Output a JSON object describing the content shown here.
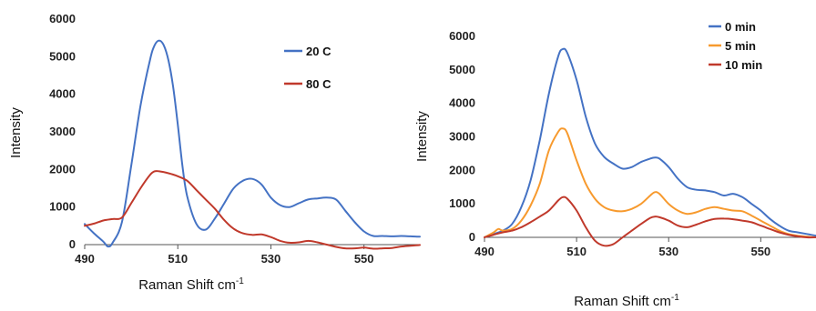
{
  "chart_data": [
    {
      "type": "line",
      "xlabel": "Raman Shift cm",
      "xlabel_sup": "-1",
      "ylabel": "Intensity",
      "xlim": [
        490,
        562
      ],
      "ylim": [
        0,
        6000
      ],
      "xticks": [
        490,
        510,
        530,
        550
      ],
      "yticks": [
        0,
        1000,
        2000,
        3000,
        4000,
        5000,
        6000
      ],
      "grid": false,
      "legend_position": "top-right",
      "series": [
        {
          "name": "20 C",
          "color": "#4472C4",
          "x": [
            490,
            492,
            494,
            495,
            496,
            498,
            500,
            502,
            504,
            505,
            506,
            507,
            508,
            509,
            510,
            511,
            512,
            514,
            516,
            518,
            520,
            522,
            524,
            526,
            528,
            530,
            532,
            534,
            536,
            538,
            540,
            542,
            544,
            546,
            548,
            550,
            552,
            554,
            556,
            558,
            560,
            562
          ],
          "values": [
            550,
            300,
            80,
            -50,
            50,
            600,
            2100,
            3700,
            4900,
            5300,
            5430,
            5300,
            4900,
            4200,
            3200,
            2100,
            1300,
            550,
            400,
            700,
            1100,
            1500,
            1700,
            1750,
            1600,
            1250,
            1050,
            1000,
            1100,
            1200,
            1230,
            1250,
            1200,
            900,
            600,
            350,
            230,
            230,
            220,
            230,
            220,
            210
          ]
        },
        {
          "name": "80 C",
          "color": "#C0392B",
          "x": [
            490,
            492,
            494,
            496,
            498,
            500,
            502,
            504,
            505,
            506,
            508,
            510,
            512,
            514,
            516,
            518,
            520,
            522,
            524,
            526,
            528,
            530,
            532,
            534,
            536,
            538,
            540,
            542,
            544,
            546,
            548,
            550,
            552,
            554,
            556,
            558,
            560,
            562
          ],
          "values": [
            500,
            560,
            640,
            680,
            720,
            1100,
            1500,
            1850,
            1950,
            1950,
            1900,
            1820,
            1700,
            1450,
            1200,
            950,
            650,
            420,
            300,
            260,
            270,
            200,
            100,
            50,
            60,
            100,
            60,
            0,
            -60,
            -100,
            -100,
            -80,
            -110,
            -100,
            -90,
            -50,
            -30,
            -10
          ]
        }
      ]
    },
    {
      "type": "line",
      "xlabel": "Raman Shift cm",
      "xlabel_sup": "-1",
      "ylabel": "Intensity",
      "xlim": [
        490,
        562
      ],
      "ylim": [
        0,
        6000
      ],
      "xticks": [
        490,
        510,
        530,
        550
      ],
      "yticks": [
        0,
        1000,
        2000,
        3000,
        4000,
        5000,
        6000
      ],
      "grid": false,
      "legend_position": "top-right",
      "series": [
        {
          "name": "0 min",
          "color": "#4472C4",
          "x": [
            490,
            492,
            494,
            496,
            498,
            500,
            502,
            504,
            506,
            507,
            508,
            510,
            512,
            514,
            516,
            518,
            520,
            522,
            524,
            526,
            527,
            528,
            530,
            532,
            534,
            536,
            538,
            540,
            542,
            544,
            546,
            548,
            550,
            552,
            554,
            556,
            558,
            560,
            562
          ],
          "values": [
            0,
            100,
            200,
            400,
            900,
            1700,
            2900,
            4300,
            5400,
            5620,
            5500,
            4700,
            3600,
            2800,
            2400,
            2200,
            2050,
            2100,
            2250,
            2350,
            2380,
            2350,
            2100,
            1750,
            1500,
            1420,
            1400,
            1350,
            1250,
            1300,
            1200,
            1000,
            800,
            550,
            350,
            200,
            150,
            100,
            50
          ]
        },
        {
          "name": "5 min",
          "color": "#F79A2E",
          "x": [
            490,
            492,
            493,
            494,
            496,
            498,
            500,
            502,
            504,
            506,
            507,
            508,
            510,
            512,
            514,
            516,
            518,
            520,
            522,
            524,
            526,
            527,
            528,
            530,
            532,
            534,
            536,
            538,
            540,
            542,
            544,
            546,
            548,
            550,
            552,
            554,
            556,
            558,
            560,
            562
          ],
          "values": [
            0,
            150,
            250,
            200,
            250,
            500,
            950,
            1600,
            2600,
            3150,
            3250,
            3100,
            2300,
            1600,
            1150,
            900,
            800,
            780,
            850,
            1000,
            1250,
            1350,
            1300,
            1000,
            800,
            700,
            750,
            850,
            900,
            850,
            800,
            780,
            650,
            500,
            350,
            200,
            100,
            50,
            20,
            0
          ]
        },
        {
          "name": "10 min",
          "color": "#C0392B",
          "x": [
            490,
            492,
            494,
            496,
            498,
            500,
            502,
            504,
            506,
            507,
            508,
            510,
            512,
            514,
            516,
            518,
            520,
            522,
            524,
            526,
            527,
            528,
            530,
            532,
            534,
            536,
            538,
            540,
            542,
            544,
            546,
            548,
            550,
            552,
            554,
            556,
            558,
            560,
            562
          ],
          "values": [
            0,
            80,
            150,
            200,
            300,
            450,
            620,
            800,
            1100,
            1200,
            1150,
            800,
            300,
            -100,
            -250,
            -200,
            0,
            200,
            400,
            580,
            620,
            600,
            500,
            350,
            300,
            380,
            480,
            550,
            560,
            540,
            500,
            450,
            350,
            250,
            150,
            80,
            30,
            0,
            0
          ]
        }
      ]
    }
  ]
}
